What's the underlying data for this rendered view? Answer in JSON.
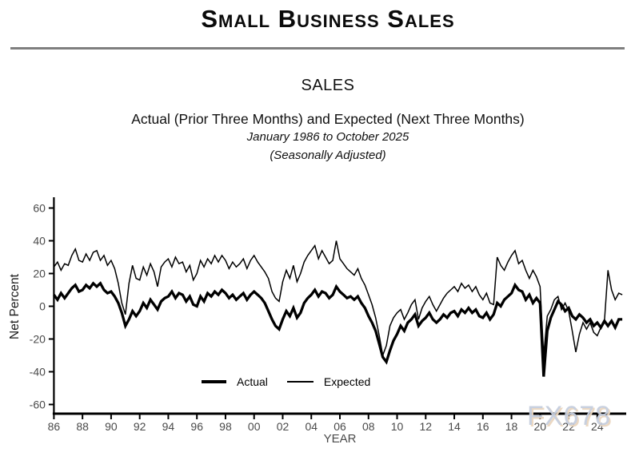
{
  "header": {
    "title": "Small Business Sales"
  },
  "subtitles": {
    "section": "SALES",
    "line1": "Actual (Prior Three Months) and Expected (Next Three Months)",
    "line2": "January 1986 to October 2025",
    "line3": "(Seasonally Adjusted)"
  },
  "watermark": "FX678",
  "colors": {
    "line": "#000000",
    "tick_label": "#4a4a4a",
    "divider": "#7f7f7f",
    "watermark_blue": "#c6cede",
    "watermark_tan": "#ead6bf"
  },
  "chart_data": {
    "type": "line",
    "title": "SALES",
    "xlabel": "YEAR",
    "ylabel": "Net Percent",
    "x_start": 1986.0,
    "x_step": 0.25,
    "x_end": 2025.75,
    "xlim": [
      1986,
      2026
    ],
    "ylim": [
      -66,
      67
    ],
    "grid": false,
    "legend_position": "inside-bottom-center",
    "y_ticks": [
      60,
      40,
      20,
      0,
      -20,
      -40,
      -60
    ],
    "x_ticks": [
      1986,
      1988,
      1990,
      1992,
      1994,
      1996,
      1998,
      2000,
      2002,
      2004,
      2006,
      2008,
      2010,
      2012,
      2014,
      2016,
      2018,
      2020,
      2022,
      2024
    ],
    "x_tick_labels": [
      "86",
      "88",
      "90",
      "92",
      "94",
      "96",
      "98",
      "00",
      "02",
      "04",
      "06",
      "08",
      "10",
      "12",
      "14",
      "16",
      "18",
      "20",
      "22",
      "24"
    ],
    "series": [
      {
        "name": "Actual",
        "style": "thick",
        "values": [
          7,
          4,
          8,
          5,
          8,
          11,
          13,
          9,
          10,
          13,
          11,
          14,
          12,
          14,
          10,
          8,
          9,
          6,
          2,
          -4,
          -12,
          -8,
          -3,
          -6,
          -3,
          2,
          -1,
          4,
          1,
          -2,
          3,
          5,
          6,
          9,
          5,
          8,
          7,
          3,
          6,
          1,
          0,
          6,
          3,
          8,
          6,
          9,
          7,
          10,
          8,
          5,
          7,
          4,
          6,
          8,
          4,
          7,
          9,
          7,
          5,
          2,
          -3,
          -8,
          -12,
          -14,
          -8,
          -3,
          -6,
          -1,
          -7,
          -4,
          2,
          5,
          7,
          10,
          6,
          9,
          8,
          5,
          7,
          12,
          9,
          7,
          5,
          6,
          4,
          6,
          2,
          -1,
          -6,
          -10,
          -15,
          -23,
          -31,
          -34,
          -27,
          -21,
          -17,
          -12,
          -15,
          -10,
          -8,
          -5,
          -12,
          -9,
          -7,
          -4,
          -8,
          -10,
          -8,
          -5,
          -7,
          -4,
          -3,
          -6,
          -2,
          -4,
          -1,
          -4,
          -2,
          -6,
          -7,
          -4,
          -8,
          -5,
          2,
          0,
          4,
          6,
          8,
          13,
          10,
          9,
          4,
          7,
          2,
          5,
          2,
          -43,
          -15,
          -7,
          -2,
          3,
          1,
          -3,
          -1,
          -6,
          -8,
          -5,
          -7,
          -10,
          -8,
          -12,
          -10,
          -13,
          -9,
          -12,
          -9,
          -13,
          -8,
          -8
        ]
      },
      {
        "name": "Expected",
        "style": "thin",
        "values": [
          24,
          27,
          22,
          26,
          25,
          31,
          35,
          28,
          27,
          32,
          28,
          33,
          34,
          28,
          31,
          25,
          28,
          23,
          14,
          2,
          -5,
          14,
          25,
          17,
          16,
          24,
          19,
          26,
          21,
          12,
          24,
          27,
          29,
          24,
          30,
          26,
          27,
          21,
          25,
          16,
          20,
          28,
          24,
          29,
          26,
          31,
          27,
          31,
          28,
          23,
          27,
          24,
          26,
          29,
          23,
          28,
          31,
          27,
          24,
          21,
          17,
          9,
          5,
          3,
          15,
          22,
          17,
          25,
          15,
          20,
          27,
          31,
          34,
          37,
          29,
          34,
          30,
          26,
          28,
          40,
          29,
          26,
          23,
          21,
          19,
          23,
          17,
          13,
          7,
          1,
          -7,
          -18,
          -30,
          -24,
          -12,
          -7,
          -4,
          -2,
          -8,
          -4,
          1,
          4,
          -8,
          -1,
          3,
          6,
          1,
          -3,
          1,
          5,
          8,
          10,
          12,
          9,
          14,
          11,
          13,
          9,
          12,
          7,
          4,
          8,
          2,
          1,
          30,
          25,
          22,
          27,
          31,
          34,
          26,
          28,
          22,
          17,
          22,
          18,
          12,
          -30,
          -6,
          -2,
          4,
          6,
          -2,
          2,
          -3,
          -15,
          -28,
          -17,
          -10,
          -14,
          -10,
          -16,
          -18,
          -13,
          -9,
          22,
          10,
          4,
          8,
          7
        ]
      }
    ]
  }
}
